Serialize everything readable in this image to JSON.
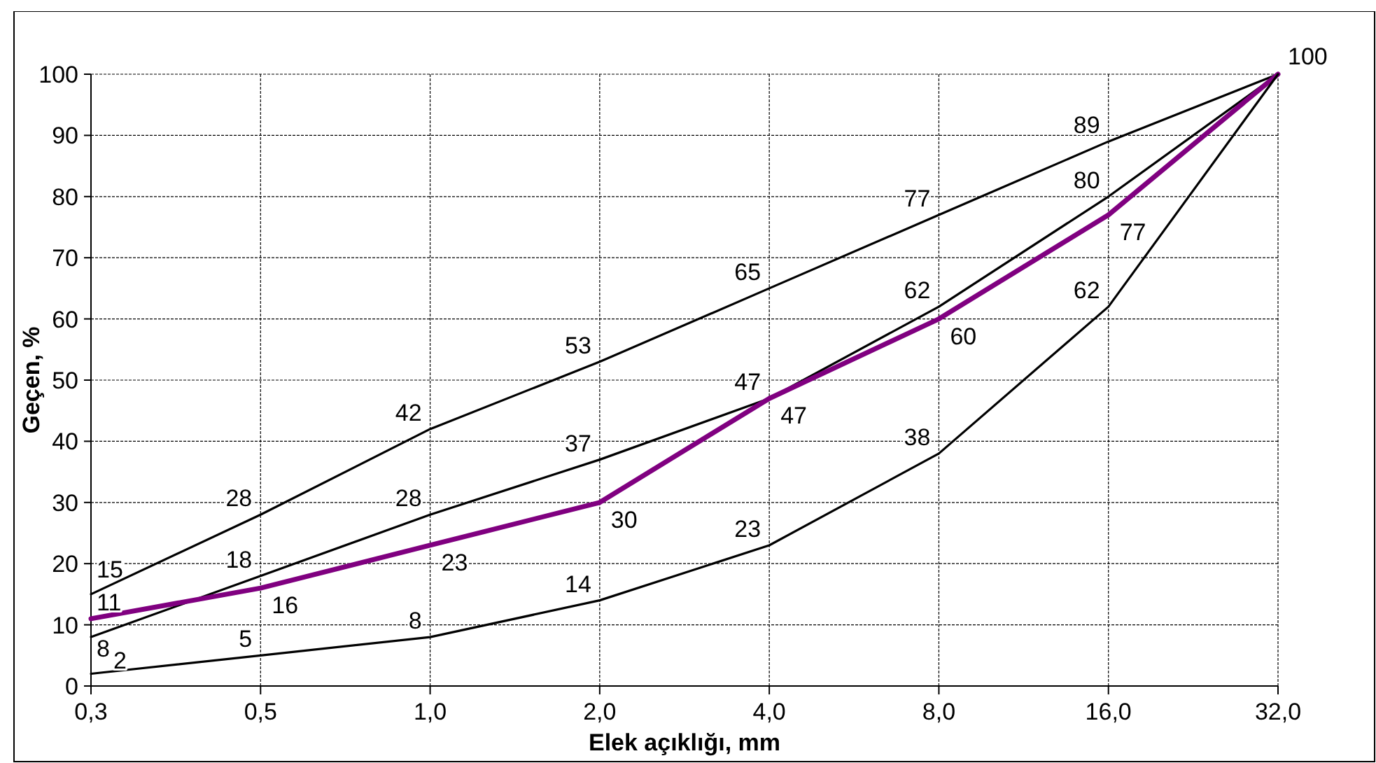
{
  "chart_data": {
    "type": "line",
    "xlabel": "Elek açıklığı, mm",
    "ylabel": "Geçen, %",
    "categories": [
      "0,3",
      "0,5",
      "1,0",
      "2,0",
      "4,0",
      "8,0",
      "16,0",
      "32,0"
    ],
    "series": [
      {
        "color": "#000000",
        "values": [
          15,
          28,
          42,
          53,
          65,
          77,
          89,
          100
        ],
        "value_labels": [
          "15",
          "28",
          "42",
          "53",
          "65",
          "77",
          "89",
          "100"
        ]
      },
      {
        "color": "#000000",
        "values": [
          8,
          18,
          28,
          37,
          47,
          62,
          80,
          100
        ],
        "value_labels": [
          "8",
          "18",
          "28",
          "37",
          "47",
          "62",
          "80",
          null
        ]
      },
      {
        "color": "#800080",
        "values": [
          11,
          16,
          23,
          30,
          47,
          60,
          77,
          100
        ],
        "value_labels": [
          "11",
          "16",
          "23",
          "30",
          "47",
          "60",
          "77",
          null
        ]
      },
      {
        "color": "#000000",
        "values": [
          2,
          5,
          8,
          14,
          23,
          38,
          62,
          100
        ],
        "value_labels": [
          "2",
          "5",
          "8",
          "14",
          "23",
          "38",
          "62",
          null
        ]
      }
    ],
    "ylim": [
      0,
      100
    ],
    "yticks": [
      0,
      10,
      20,
      30,
      40,
      50,
      60,
      70,
      80,
      90,
      100
    ],
    "grid": true,
    "marker": "none",
    "line_style": "solid"
  }
}
